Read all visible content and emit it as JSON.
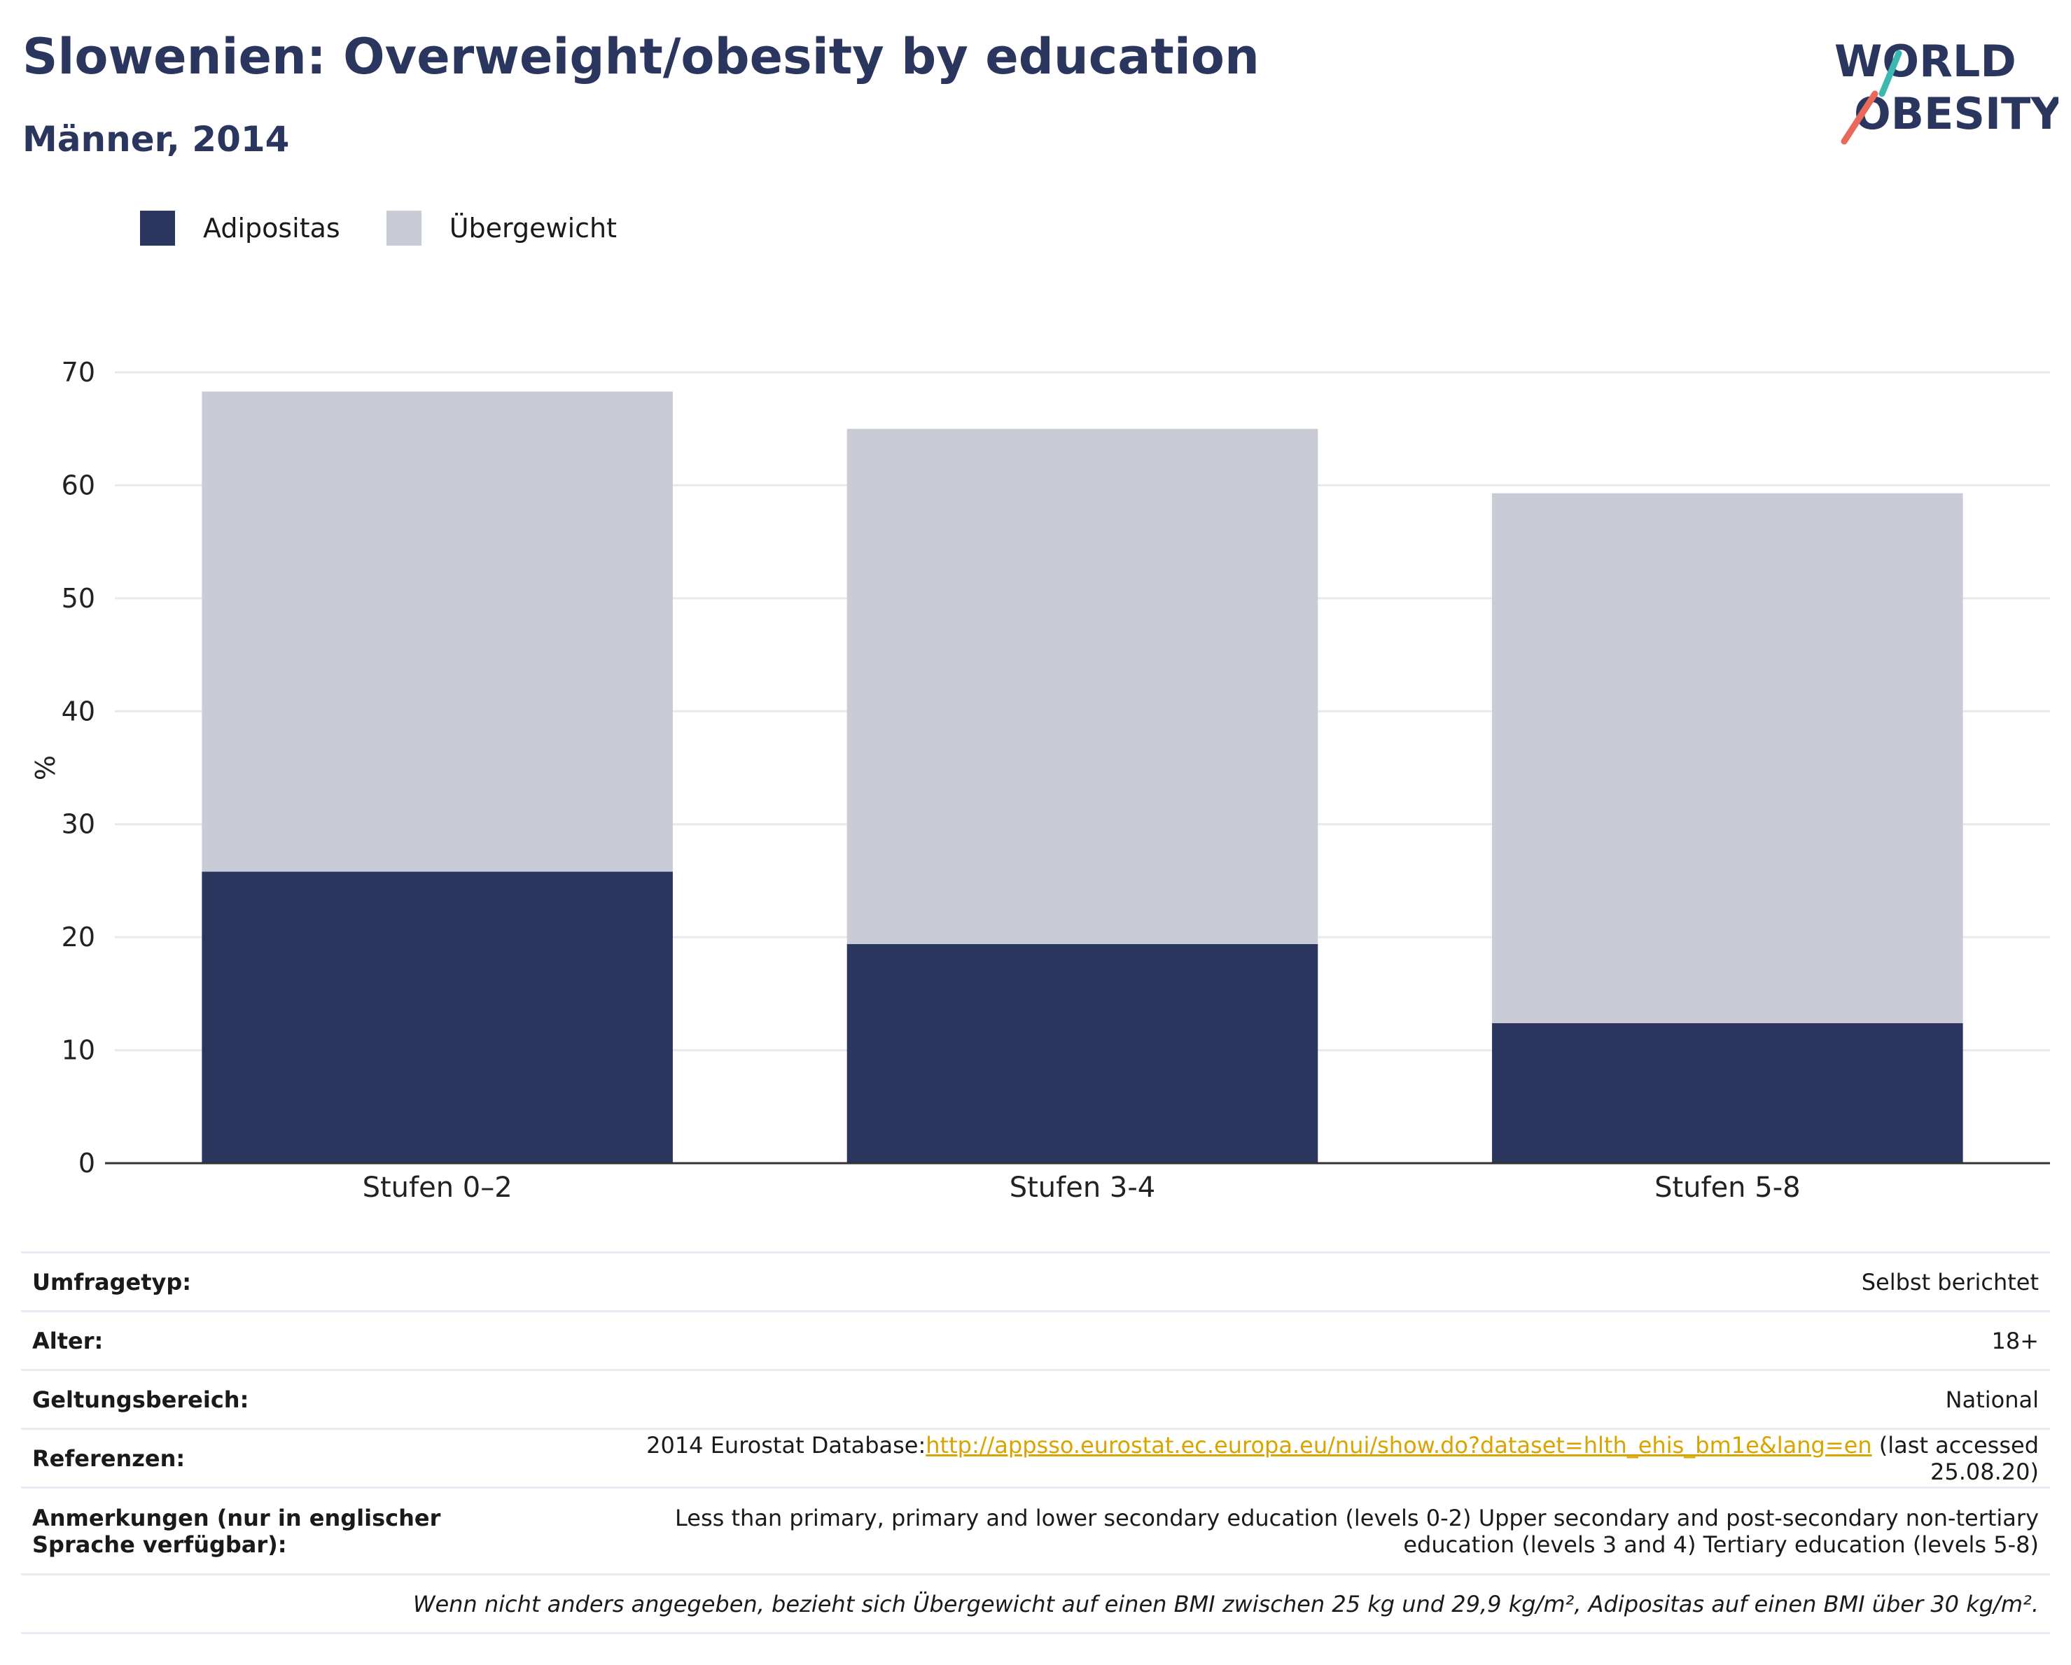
{
  "header": {
    "title": "Slowenien: Overweight/obesity by education",
    "subtitle": "Männer, 2014"
  },
  "logo": {
    "line1": "WORLD",
    "line2": "OBESITY",
    "accent_teal": "#3cb8b0",
    "accent_red": "#e8685a"
  },
  "colors": {
    "obesity": "#2b365f",
    "overweight": "#c9cbd7",
    "grid": "#e8e9ee",
    "axis": "#333333"
  },
  "chart_data": {
    "type": "bar",
    "stacked": true,
    "categories": [
      "Stufen 0–2",
      "Stufen 3-4",
      "Stufen 5-8"
    ],
    "series": [
      {
        "name": "Adipositas",
        "values": [
          25.8,
          19.4,
          12.4
        ]
      },
      {
        "name": "Übergewicht",
        "values": [
          42.5,
          45.6,
          46.9
        ]
      }
    ],
    "ylabel": "%",
    "ylim": [
      0,
      70
    ],
    "yticks": [
      0,
      10,
      20,
      30,
      40,
      50,
      60,
      70
    ],
    "grid": true,
    "legend_position": "top-left"
  },
  "info": {
    "rows": [
      {
        "key": "Umfragetyp:",
        "value": "Selbst berichtet"
      },
      {
        "key": "Alter:",
        "value": "18+"
      },
      {
        "key": "Geltungsbereich:",
        "value": "National"
      }
    ],
    "references": {
      "key": "Referenzen:",
      "prefix": "2014 Eurostat Database:",
      "url": "http://appsso.eurostat.ec.europa.eu/nui/show.do?dataset=hlth_ehis_bm1e&lang=en",
      "suffix": " (last accessed 25.08.20)"
    },
    "notes": {
      "key": "Anmerkungen (nur in englischer Sprache verfügbar):",
      "value": "Less than primary, primary and lower secondary education (levels 0-2) Upper secondary and post-secondary non-tertiary education (levels 3 and 4) Tertiary education (levels 5-8)"
    },
    "footnote": "Wenn nicht anders angegeben, bezieht sich Übergewicht auf einen BMI zwischen 25 kg und 29,9 kg/m², Adipositas auf einen BMI über 30 kg/m²."
  }
}
